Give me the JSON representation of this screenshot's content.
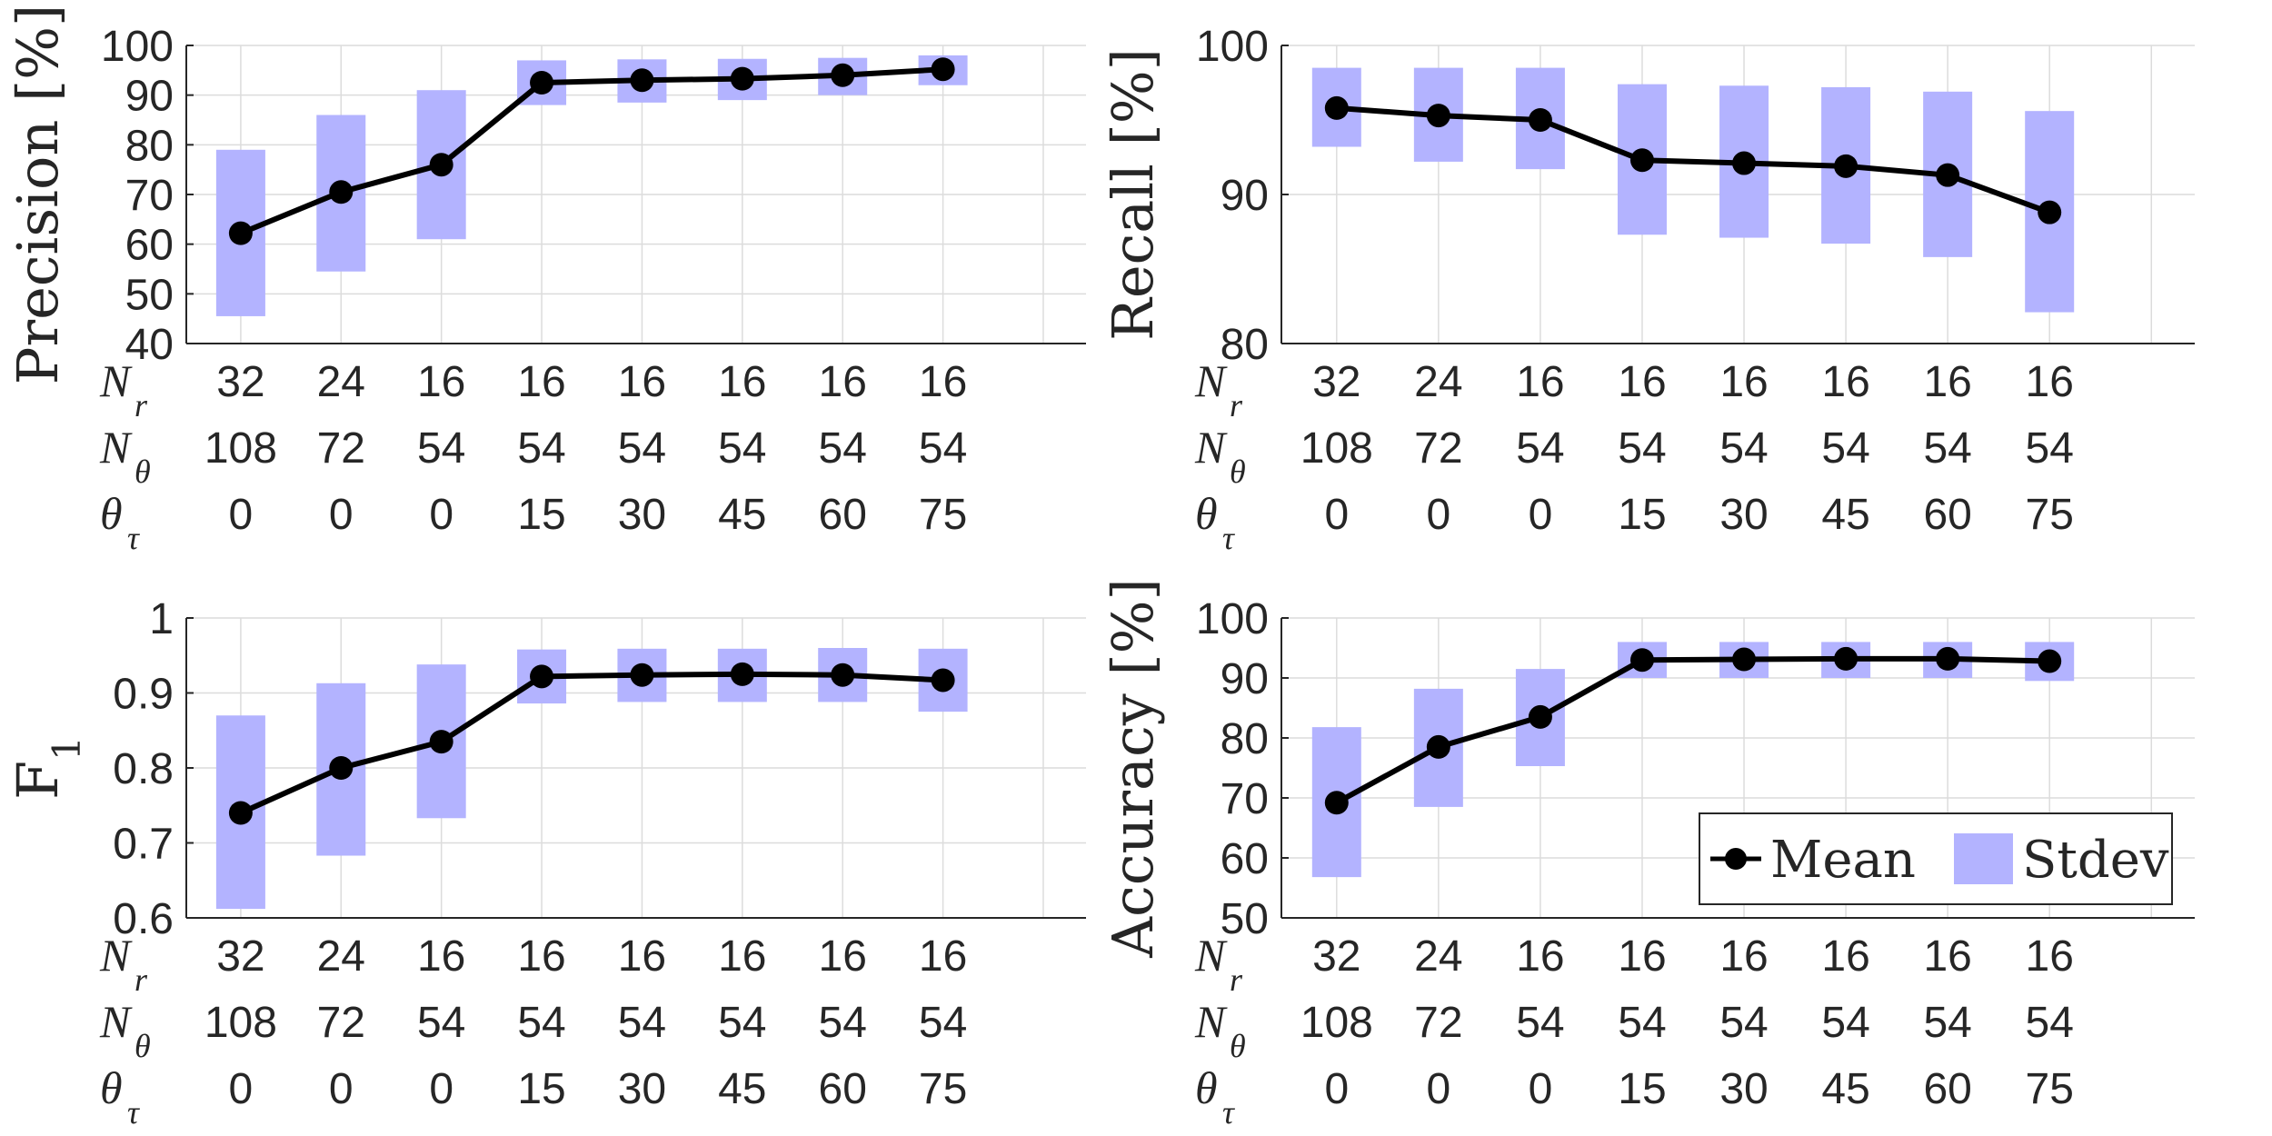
{
  "chart_data": [
    {
      "type": "line",
      "name": "precision",
      "ylabel": "Precision [%]",
      "ylim": [
        40,
        100
      ],
      "yticks": [
        "40",
        "50",
        "60",
        "70",
        "80",
        "90",
        "100"
      ],
      "grid": true,
      "series": [
        {
          "name": "Mean",
          "values": [
            62.2,
            70.5,
            76.0,
            92.5,
            93.0,
            93.3,
            94.0,
            95.2
          ]
        },
        {
          "name": "Stdev",
          "lower": [
            45.5,
            54.5,
            61.0,
            88.0,
            88.5,
            89.0,
            90.0,
            92.0
          ],
          "upper": [
            79.0,
            86.0,
            91.0,
            97.0,
            97.2,
            97.3,
            97.5,
            98.0
          ]
        }
      ]
    },
    {
      "type": "line",
      "name": "recall",
      "ylabel": "Recall [%]",
      "ylim": [
        80,
        100
      ],
      "yticks": [
        "80",
        "90",
        "100"
      ],
      "grid": true,
      "series": [
        {
          "name": "Mean",
          "values": [
            95.8,
            95.3,
            95.0,
            92.3,
            92.1,
            91.9,
            91.3,
            88.8
          ]
        },
        {
          "name": "Stdev",
          "lower": [
            93.2,
            92.2,
            91.7,
            87.3,
            87.1,
            86.7,
            85.8,
            82.1
          ],
          "upper": [
            98.5,
            98.5,
            98.5,
            97.4,
            97.3,
            97.2,
            96.9,
            95.6
          ]
        }
      ]
    },
    {
      "type": "line",
      "name": "f1",
      "ylabel": "F",
      "ylabel_sub": "1",
      "ylim": [
        0.6,
        1.0
      ],
      "yticks": [
        "0.6",
        "0.7",
        "0.8",
        "0.9",
        "1"
      ],
      "grid": true,
      "series": [
        {
          "name": "Mean",
          "values": [
            0.74,
            0.8,
            0.835,
            0.922,
            0.924,
            0.925,
            0.924,
            0.917
          ]
        },
        {
          "name": "Stdev",
          "lower": [
            0.612,
            0.683,
            0.733,
            0.886,
            0.888,
            0.888,
            0.888,
            0.875
          ],
          "upper": [
            0.87,
            0.913,
            0.938,
            0.958,
            0.959,
            0.959,
            0.96,
            0.959
          ]
        }
      ]
    },
    {
      "type": "line",
      "name": "accuracy",
      "ylabel": "Accuracy [%]",
      "ylim": [
        50,
        100
      ],
      "yticks": [
        "50",
        "60",
        "70",
        "80",
        "90",
        "100"
      ],
      "grid": true,
      "legend": {
        "position": "bottom-right",
        "mean_label": "Mean",
        "stdev_label": "Stdev"
      },
      "series": [
        {
          "name": "Mean",
          "values": [
            69.2,
            78.5,
            83.5,
            93.0,
            93.1,
            93.2,
            93.2,
            92.8
          ]
        },
        {
          "name": "Stdev",
          "lower": [
            56.8,
            68.5,
            75.3,
            90.0,
            90.0,
            90.0,
            90.0,
            89.5
          ],
          "upper": [
            81.8,
            88.2,
            91.5,
            96.0,
            96.0,
            96.0,
            96.0,
            96.0
          ]
        }
      ]
    }
  ],
  "x_parameters": {
    "rows": [
      {
        "symbol": "N",
        "sub": "r",
        "values": [
          "32",
          "24",
          "16",
          "16",
          "16",
          "16",
          "16",
          "16"
        ]
      },
      {
        "symbol": "N",
        "sub": "θ",
        "values": [
          "108",
          "72",
          "54",
          "54",
          "54",
          "54",
          "54",
          "54"
        ]
      },
      {
        "symbol": "θ",
        "sub": "τ",
        "values": [
          "0",
          "0",
          "0",
          "15",
          "30",
          "45",
          "60",
          "75"
        ]
      }
    ]
  },
  "colors": {
    "mean": "#000000",
    "stdev": "#b3b3ff",
    "axis": "#262626",
    "grid": "#dcdcdc"
  }
}
